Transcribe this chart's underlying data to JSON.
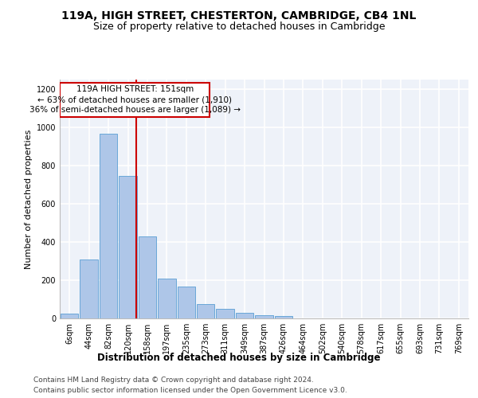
{
  "title1": "119A, HIGH STREET, CHESTERTON, CAMBRIDGE, CB4 1NL",
  "title2": "Size of property relative to detached houses in Cambridge",
  "xlabel": "Distribution of detached houses by size in Cambridge",
  "ylabel": "Number of detached properties",
  "footer1": "Contains HM Land Registry data © Crown copyright and database right 2024.",
  "footer2": "Contains public sector information licensed under the Open Government Licence v3.0.",
  "bar_labels": [
    "6sqm",
    "44sqm",
    "82sqm",
    "120sqm",
    "158sqm",
    "197sqm",
    "235sqm",
    "273sqm",
    "311sqm",
    "349sqm",
    "387sqm",
    "426sqm",
    "464sqm",
    "502sqm",
    "540sqm",
    "578sqm",
    "617sqm",
    "655sqm",
    "693sqm",
    "731sqm",
    "769sqm"
  ],
  "heights": [
    25,
    310,
    965,
    745,
    430,
    210,
    165,
    75,
    50,
    30,
    18,
    12,
    0,
    0,
    0,
    0,
    0,
    0,
    0,
    0,
    0
  ],
  "bar_color": "#aec6e8",
  "bar_edge_color": "#5a9fd4",
  "annotation_line1": "119A HIGH STREET: 151sqm",
  "annotation_line2": "← 63% of detached houses are smaller (1,910)",
  "annotation_line3": "36% of semi-detached houses are larger (1,089) →",
  "vline_x": 3.45,
  "vline_color": "#cc0000",
  "box_color": "#cc0000",
  "ylim": [
    0,
    1250
  ],
  "yticks": [
    0,
    200,
    400,
    600,
    800,
    1000,
    1200
  ],
  "background_color": "#eef2f9",
  "grid_color": "#ffffff",
  "title1_fontsize": 10,
  "title2_fontsize": 9,
  "ylabel_fontsize": 8,
  "xlabel_fontsize": 8.5,
  "tick_fontsize": 7,
  "annotation_fontsize": 7.5,
  "footer_fontsize": 6.5
}
